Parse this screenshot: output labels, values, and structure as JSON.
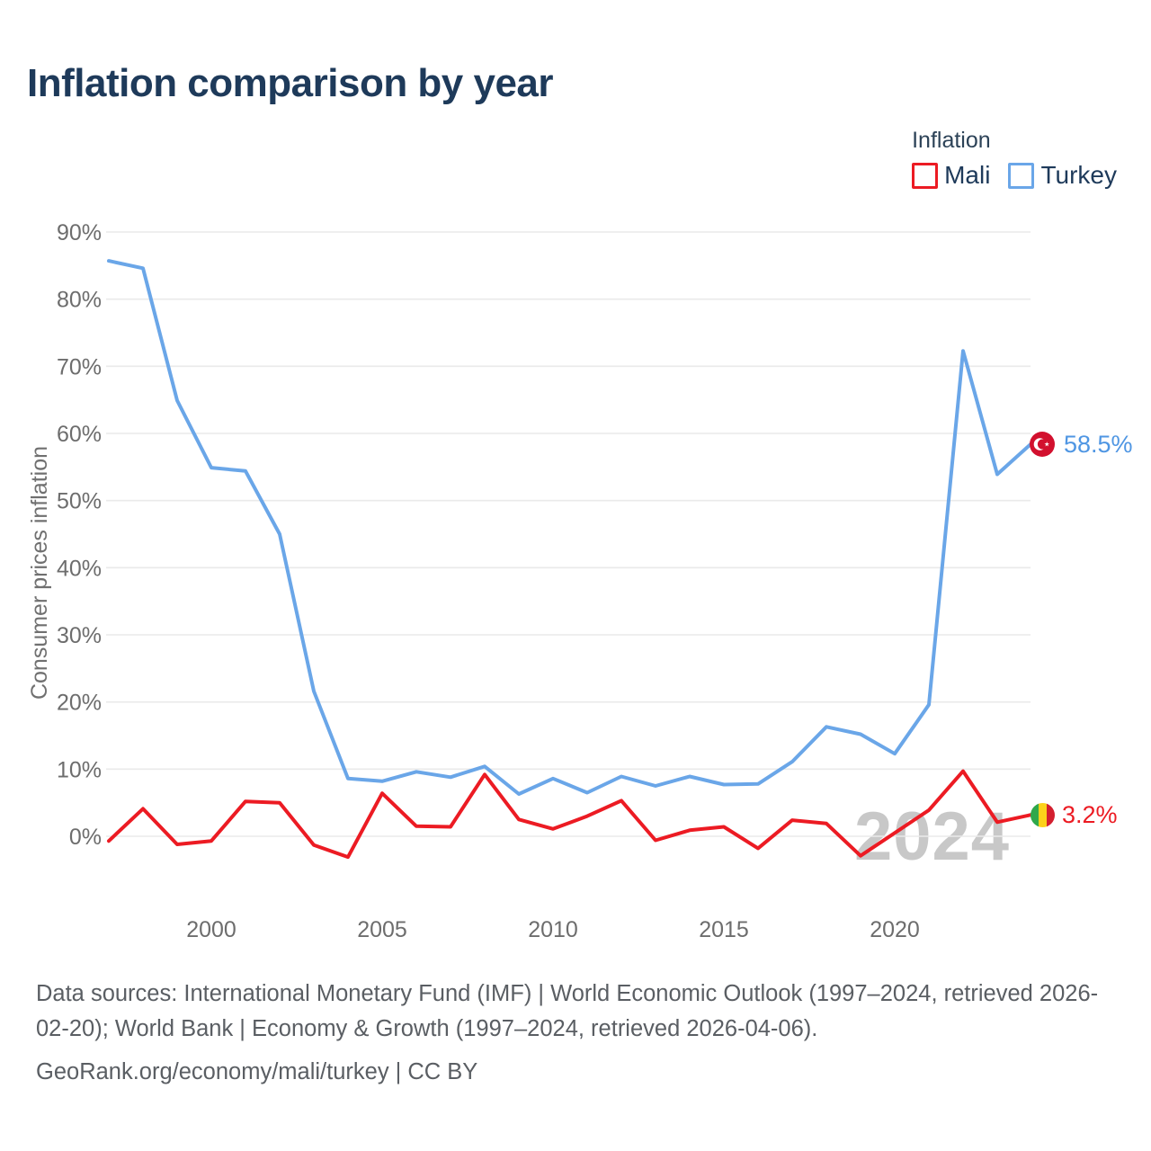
{
  "header": {
    "title": "Inflation comparison by year"
  },
  "legend": {
    "title": "Inflation",
    "items": [
      {
        "label": "Mali",
        "color": "#ec1b23"
      },
      {
        "label": "Turkey",
        "color": "#6aa6e8"
      }
    ]
  },
  "chart_data": {
    "type": "line",
    "title": "Inflation comparison by year",
    "xlabel": "",
    "ylabel": "Consumer prices inflation",
    "x": [
      1997,
      1998,
      1999,
      2000,
      2001,
      2002,
      2003,
      2004,
      2005,
      2006,
      2007,
      2008,
      2009,
      2010,
      2011,
      2012,
      2013,
      2014,
      2015,
      2016,
      2017,
      2018,
      2019,
      2020,
      2021,
      2022,
      2023,
      2024
    ],
    "series": [
      {
        "name": "Turkey",
        "color": "#6aa6e8",
        "values": [
          85.7,
          84.6,
          64.9,
          54.9,
          54.4,
          45.0,
          21.6,
          8.6,
          8.2,
          9.6,
          8.8,
          10.4,
          6.3,
          8.6,
          6.5,
          8.9,
          7.5,
          8.9,
          7.7,
          7.8,
          11.1,
          16.3,
          15.2,
          12.3,
          19.6,
          72.3,
          53.9,
          58.5
        ],
        "end_label": "58.5%",
        "flag": "turkey"
      },
      {
        "name": "Mali",
        "color": "#ec1b23",
        "values": [
          -0.7,
          4.1,
          -1.2,
          -0.7,
          5.2,
          5.0,
          -1.3,
          -3.1,
          6.4,
          1.5,
          1.4,
          9.2,
          2.5,
          1.1,
          3.0,
          5.3,
          -0.6,
          0.9,
          1.4,
          -1.8,
          2.4,
          1.9,
          -2.9,
          0.5,
          3.9,
          9.7,
          2.1,
          3.2
        ],
        "end_label": "3.2%",
        "flag": "mali"
      }
    ],
    "yticks": {
      "values": [
        0,
        10,
        20,
        30,
        40,
        50,
        60,
        70,
        80,
        90
      ],
      "labels": [
        "0%",
        "10%",
        "20%",
        "30%",
        "40%",
        "50%",
        "60%",
        "70%",
        "80%",
        "90%"
      ]
    },
    "xticks": [
      2000,
      2005,
      2010,
      2015,
      2020
    ],
    "xlim": [
      1997,
      2024
    ],
    "ylim": [
      -5,
      93
    ],
    "grid": "horizontal",
    "legend_position": "top-right",
    "watermark": "2024"
  },
  "footer": {
    "lines": [
      "Data sources: International Monetary Fund (IMF) | World Economic Outlook (1997–2024, retrieved 2026-",
      "02-20); World Bank | Economy & Growth (1997–2024, retrieved 2026-04-06).",
      "GeoRank.org/economy/mali/turkey | CC BY"
    ]
  }
}
